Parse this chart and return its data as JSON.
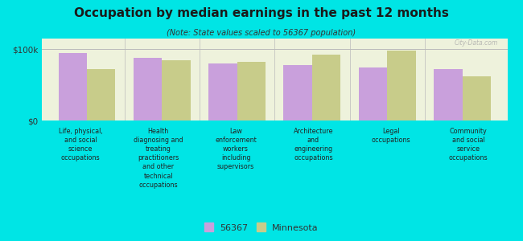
{
  "title": "Occupation by median earnings in the past 12 months",
  "subtitle": "(Note: State values scaled to 56367 population)",
  "categories": [
    "Life, physical,\nand social\nscience\noccupations",
    "Health\ndiagnosing and\ntreating\npractitioners\nand other\ntechnical\noccupations",
    "Law\nenforcement\nworkers\nincluding\nsupervisors",
    "Architecture\nand\nengineering\noccupations",
    "Legal\noccupations",
    "Community\nand social\nservice\noccupations"
  ],
  "values_56367": [
    95000,
    88000,
    80000,
    78000,
    74000,
    72000
  ],
  "values_minnesota": [
    72000,
    84000,
    82000,
    93000,
    98000,
    62000
  ],
  "color_56367": "#c9a0dc",
  "color_minnesota": "#c8cc8a",
  "ylim": [
    0,
    115000
  ],
  "ytick_labels": [
    "$0",
    "$100k"
  ],
  "background_color": "#00e5e5",
  "plot_bg_color": "#eef2dc",
  "legend_label_56367": "56367",
  "legend_label_minnesota": "Minnesota",
  "watermark": "City-Data.com"
}
